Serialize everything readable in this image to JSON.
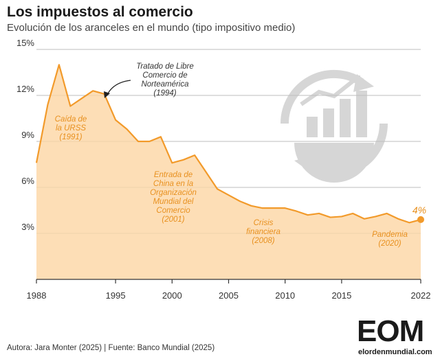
{
  "header": {
    "title": "Los impuestos al comercio",
    "subtitle": "Evolución de los aranceles en el mundo (tipo impositivo medio)"
  },
  "footer": {
    "credits": "Autora: Jara Monter (2025) | Fuente: Banco Mundial (2025)"
  },
  "logo": {
    "letters": "EOM",
    "url": "elordenmundial.com"
  },
  "colors": {
    "area_fill": "#fdd6a4",
    "line": "#f29a2a",
    "annotation": "#e8901e",
    "grid": "#bdbdbd",
    "icon": "#d6d6d6"
  },
  "icon": "globe-growth-chart-icon",
  "chart_data": {
    "type": "area",
    "title": "Los impuestos al comercio",
    "subtitle": "Evolución de los aranceles en el mundo (tipo impositivo medio)",
    "xlabel": "",
    "ylabel": "",
    "xlim": [
      1988,
      2022
    ],
    "ylim": [
      0,
      15
    ],
    "x_ticks": [
      1988,
      1995,
      2000,
      2005,
      2010,
      2015,
      2022
    ],
    "y_ticks": [
      3,
      6,
      9,
      12,
      15
    ],
    "y_tick_labels": [
      "3%",
      "6%",
      "9%",
      "12%",
      "15%"
    ],
    "grid": true,
    "series": [
      {
        "x": [
          1988,
          1989,
          1990,
          1991,
          1992,
          1993,
          1994,
          1995,
          1996,
          1997,
          1998,
          1999,
          2000,
          2001,
          2002,
          2003,
          2004,
          2005,
          2006,
          2007,
          2008,
          2009,
          2010,
          2011,
          2012,
          2013,
          2014,
          2015,
          2016,
          2017,
          2018,
          2019,
          2020,
          2021,
          2022
        ],
        "values": [
          7.6,
          11.4,
          14.0,
          11.3,
          11.8,
          12.3,
          12.1,
          10.4,
          9.8,
          9.0,
          9.0,
          9.3,
          7.6,
          7.8,
          8.1,
          7.0,
          5.9,
          5.5,
          5.1,
          4.8,
          4.65,
          4.65,
          4.65,
          4.45,
          4.2,
          4.3,
          4.05,
          4.1,
          4.3,
          3.95,
          4.1,
          4.3,
          3.95,
          3.7,
          3.9
        ]
      }
    ],
    "end_label": "4%",
    "annotations": [
      {
        "text": [
          "Tratado de Libre",
          "Comercio de",
          "Norteamérica",
          "(1994)"
        ],
        "style": "dark-arrow"
      },
      {
        "text": [
          "Caída de",
          "la URSS",
          "(1991)"
        ],
        "style": "orange"
      },
      {
        "text": [
          "Entrada de",
          "China en la",
          "Organización",
          "Mundial del",
          "Comercio",
          "(2001)"
        ],
        "style": "orange"
      },
      {
        "text": [
          "Crisis",
          "financiera",
          "(2008)"
        ],
        "style": "orange"
      },
      {
        "text": [
          "Pandemia",
          "(2020)"
        ],
        "style": "orange"
      }
    ]
  }
}
